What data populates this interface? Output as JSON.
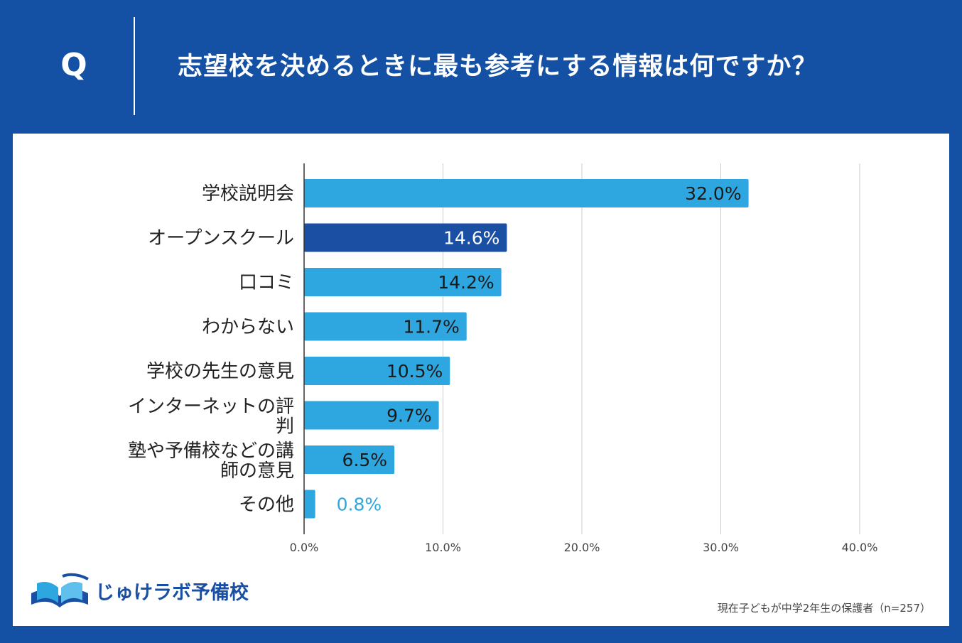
{
  "header": {
    "q_mark": "Q",
    "question": "志望校を決めるときに最も参考にする情報は何ですか？"
  },
  "chart_data": {
    "type": "bar",
    "orientation": "horizontal",
    "categories": [
      [
        "学校説明会"
      ],
      [
        "オープンスクール"
      ],
      [
        "口コミ"
      ],
      [
        "わからない"
      ],
      [
        "学校の先生の意見"
      ],
      [
        "インターネットの評",
        "判"
      ],
      [
        "塾や予備校などの講",
        "師の意見"
      ],
      [
        "その他"
      ]
    ],
    "values": [
      32.0,
      14.6,
      14.2,
      11.7,
      10.5,
      9.7,
      6.5,
      0.8
    ],
    "value_labels": [
      "32.0%",
      "14.6%",
      "14.2%",
      "11.7%",
      "10.5%",
      "9.7%",
      "6.5%",
      "0.8%"
    ],
    "highlight_index": 1,
    "xlim": [
      0,
      40
    ],
    "xticks": [
      0,
      10,
      20,
      30,
      40
    ],
    "xtick_labels": [
      "0.0%",
      "10.0%",
      "20.0%",
      "30.0%",
      "40.0%"
    ],
    "grid": true,
    "colors": {
      "bar": "#2ea6df",
      "bar_highlight": "#1a4fa3",
      "label_dark": "#1b1b1b",
      "label_light": "#ffffff",
      "label_outside": "#2ea6df",
      "grid": "#cccccc",
      "axis": "#333333"
    }
  },
  "logo": {
    "text": "じゅけラボ予備校",
    "icon": "book-logo-icon"
  },
  "footnote": "現在子どもが中学2年生の保護者（n=257）"
}
